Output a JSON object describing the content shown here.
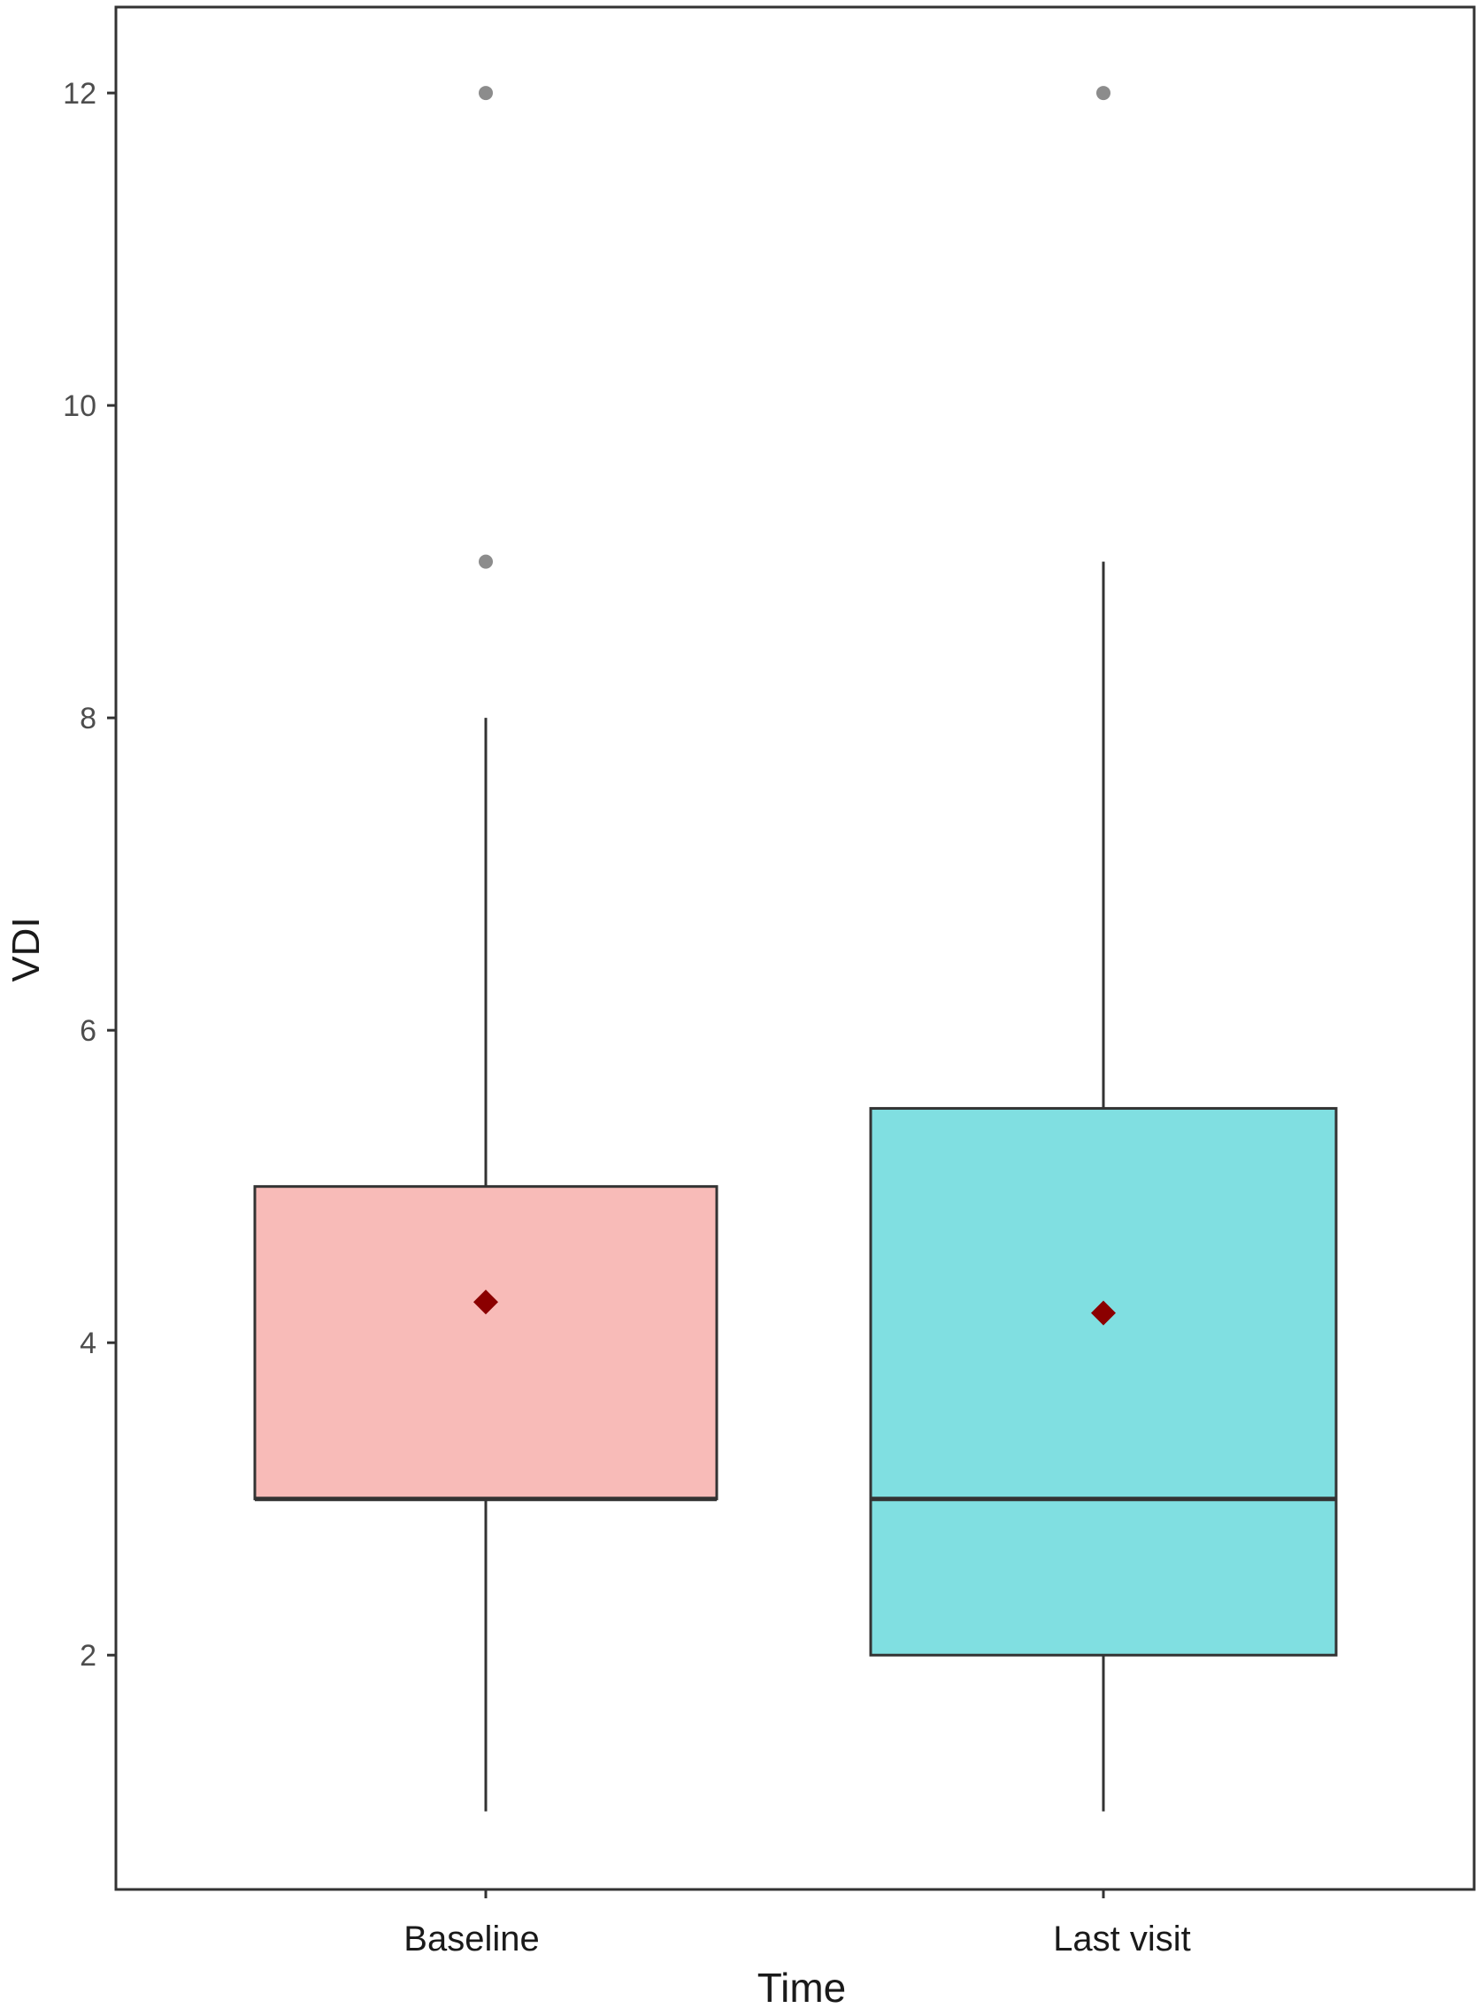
{
  "chart_data": {
    "type": "boxplot",
    "title": "",
    "xlabel": "Time",
    "ylabel": "VDI",
    "ylim": [
      0.5,
      12.55
    ],
    "yticks": [
      2,
      4,
      6,
      8,
      10,
      12
    ],
    "yticklabels": [
      "2",
      "4",
      "6",
      "8",
      "10",
      "12"
    ],
    "grid": false,
    "legend": "none",
    "categories": [
      "Baseline",
      "Last visit"
    ],
    "boxes": [
      {
        "category": "Baseline",
        "whisker_low": 1,
        "q1": 3,
        "median": 3,
        "q3": 5,
        "whisker_high": 8,
        "mean": 4.26,
        "outliers": [
          9,
          12
        ],
        "fill": "#F8BBB8"
      },
      {
        "category": "Last visit",
        "whisker_low": 1,
        "q1": 2,
        "median": 3,
        "q3": 5.5,
        "whisker_high": 9,
        "mean": 4.19,
        "outliers": [
          12
        ],
        "fill": "#80DFE1"
      }
    ],
    "colors": {
      "mean_marker": "#8B0000",
      "outlier": "#8C8C8C",
      "box_line": "#333333",
      "axis_text": "#4D4D4D",
      "panel_border": "#333333"
    }
  }
}
